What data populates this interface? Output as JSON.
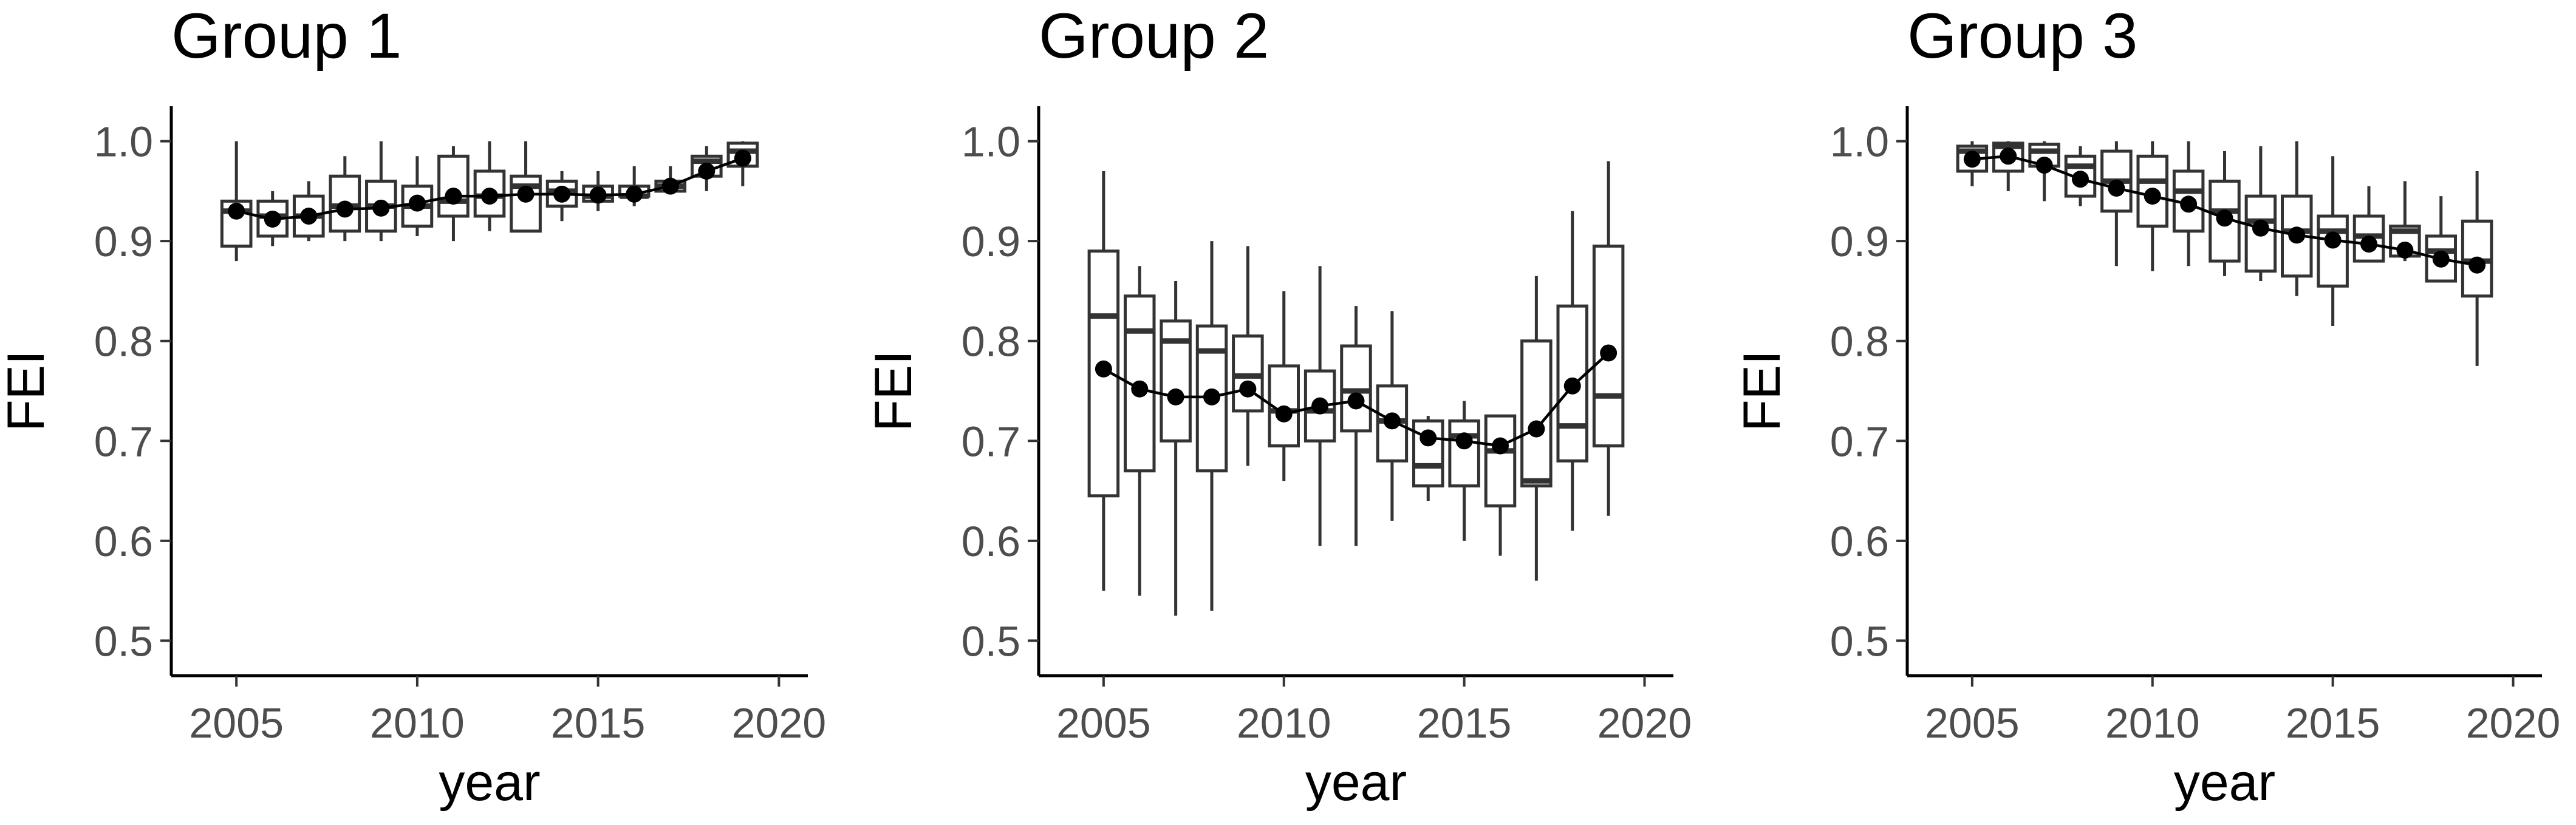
{
  "chart_data": [
    {
      "type": "box",
      "title": "Group 1",
      "xlabel": "year",
      "ylabel": "FEI",
      "ylim": [
        0.5,
        1.0
      ],
      "xlim": [
        2005,
        2020
      ],
      "xticks": [
        "2005",
        "2010",
        "2015",
        "2020"
      ],
      "yticks": [
        "0.5",
        "0.6",
        "0.7",
        "0.8",
        "0.9",
        "1.0"
      ],
      "series": [
        {
          "x": [
            2005,
            2006,
            2007,
            2008,
            2009,
            2010,
            2011,
            2012,
            2013,
            2014,
            2015,
            2016,
            2017,
            2018,
            2019
          ],
          "whisker_low": [
            0.88,
            0.895,
            0.9,
            0.9,
            0.9,
            0.905,
            0.9,
            0.91,
            0.915,
            0.92,
            0.93,
            0.935,
            0.95,
            0.95,
            0.955
          ],
          "q1": [
            0.895,
            0.905,
            0.905,
            0.91,
            0.91,
            0.915,
            0.925,
            0.925,
            0.91,
            0.935,
            0.94,
            0.945,
            0.95,
            0.965,
            0.975
          ],
          "median": [
            0.93,
            0.925,
            0.925,
            0.935,
            0.935,
            0.935,
            0.94,
            0.945,
            0.955,
            0.95,
            0.945,
            0.945,
            0.955,
            0.98,
            0.99
          ],
          "q3": [
            0.94,
            0.94,
            0.945,
            0.965,
            0.96,
            0.955,
            0.985,
            0.97,
            0.965,
            0.96,
            0.955,
            0.955,
            0.96,
            0.985,
            0.998
          ],
          "whisker_high": [
            1.0,
            0.95,
            0.96,
            0.985,
            1.0,
            0.985,
            0.995,
            1.0,
            1.0,
            0.97,
            0.97,
            0.975,
            0.975,
            0.995,
            1.0
          ],
          "mean": [
            0.93,
            0.922,
            0.925,
            0.932,
            0.933,
            0.938,
            0.945,
            0.945,
            0.947,
            0.947,
            0.946,
            0.947,
            0.955,
            0.97,
            0.983
          ]
        }
      ]
    },
    {
      "type": "box",
      "title": "Group 2",
      "xlabel": "year",
      "ylabel": "FEI",
      "ylim": [
        0.5,
        1.0
      ],
      "xlim": [
        2005,
        2020
      ],
      "xticks": [
        "2005",
        "2010",
        "2015",
        "2020"
      ],
      "yticks": [
        "0.5",
        "0.6",
        "0.7",
        "0.8",
        "0.9",
        "1.0"
      ],
      "series": [
        {
          "x": [
            2005,
            2006,
            2007,
            2008,
            2009,
            2010,
            2011,
            2012,
            2013,
            2014,
            2015,
            2016,
            2017,
            2018,
            2019
          ],
          "whisker_low": [
            0.55,
            0.545,
            0.525,
            0.53,
            0.675,
            0.66,
            0.595,
            0.595,
            0.62,
            0.64,
            0.6,
            0.585,
            0.56,
            0.61,
            0.625
          ],
          "q1": [
            0.645,
            0.67,
            0.7,
            0.67,
            0.73,
            0.695,
            0.7,
            0.71,
            0.68,
            0.655,
            0.655,
            0.635,
            0.655,
            0.68,
            0.695
          ],
          "median": [
            0.825,
            0.81,
            0.8,
            0.79,
            0.765,
            0.73,
            0.73,
            0.75,
            0.72,
            0.675,
            0.705,
            0.69,
            0.66,
            0.715,
            0.745
          ],
          "q3": [
            0.89,
            0.845,
            0.82,
            0.815,
            0.805,
            0.775,
            0.77,
            0.795,
            0.755,
            0.72,
            0.72,
            0.725,
            0.8,
            0.835,
            0.895
          ],
          "whisker_high": [
            0.97,
            0.875,
            0.86,
            0.9,
            0.895,
            0.85,
            0.875,
            0.835,
            0.83,
            0.725,
            0.74,
            0.72,
            0.865,
            0.93,
            0.98
          ],
          "mean": [
            0.772,
            0.752,
            0.744,
            0.744,
            0.752,
            0.727,
            0.735,
            0.74,
            0.72,
            0.703,
            0.7,
            0.695,
            0.712,
            0.755,
            0.788
          ]
        }
      ]
    },
    {
      "type": "box",
      "title": "Group 3",
      "xlabel": "year",
      "ylabel": "FEI",
      "ylim": [
        0.5,
        1.0
      ],
      "xlim": [
        2005,
        2020
      ],
      "xticks": [
        "2005",
        "2010",
        "2015",
        "2020"
      ],
      "yticks": [
        "0.5",
        "0.6",
        "0.7",
        "0.8",
        "0.9",
        "1.0"
      ],
      "series": [
        {
          "x": [
            2005,
            2006,
            2007,
            2008,
            2009,
            2010,
            2011,
            2012,
            2013,
            2014,
            2015,
            2016,
            2017,
            2018,
            2019
          ],
          "whisker_low": [
            0.955,
            0.95,
            0.94,
            0.935,
            0.875,
            0.87,
            0.875,
            0.865,
            0.86,
            0.845,
            0.815,
            0.885,
            0.88,
            0.87,
            0.775
          ],
          "q1": [
            0.97,
            0.97,
            0.975,
            0.945,
            0.93,
            0.915,
            0.91,
            0.88,
            0.87,
            0.865,
            0.855,
            0.88,
            0.885,
            0.86,
            0.845
          ],
          "median": [
            0.99,
            0.995,
            0.99,
            0.975,
            0.96,
            0.96,
            0.95,
            0.93,
            0.92,
            0.91,
            0.91,
            0.905,
            0.91,
            0.89,
            0.88
          ],
          "q3": [
            0.995,
            0.998,
            0.997,
            0.985,
            0.99,
            0.985,
            0.97,
            0.96,
            0.945,
            0.945,
            0.925,
            0.925,
            0.915,
            0.905,
            0.92
          ],
          "whisker_high": [
            1.0,
            1.0,
            1.0,
            0.995,
            1.0,
            1.0,
            1.0,
            0.99,
            0.995,
            1.0,
            0.985,
            0.955,
            0.96,
            0.945,
            0.97
          ],
          "mean": [
            0.982,
            0.985,
            0.976,
            0.962,
            0.953,
            0.945,
            0.937,
            0.923,
            0.913,
            0.906,
            0.901,
            0.897,
            0.891,
            0.882,
            0.876
          ]
        }
      ]
    }
  ]
}
